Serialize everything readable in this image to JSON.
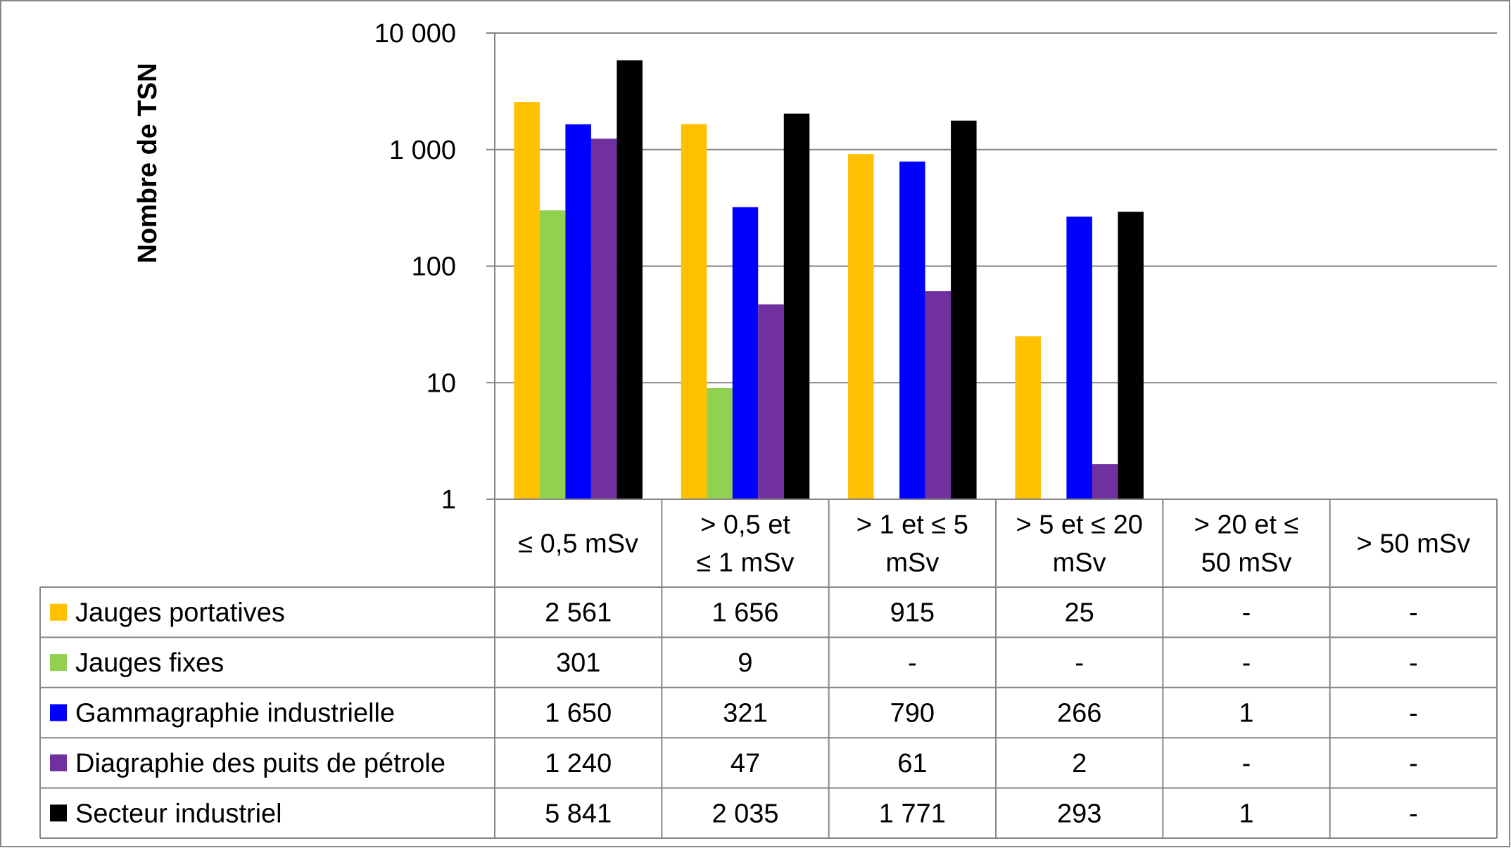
{
  "chart_data": {
    "type": "bar",
    "scale": "log",
    "ylabel": "Nombre de TSN",
    "ylim": [
      1,
      10000
    ],
    "y_ticks": [
      {
        "value": 1,
        "label": "1"
      },
      {
        "value": 10,
        "label": "10"
      },
      {
        "value": 100,
        "label": "100"
      },
      {
        "value": 1000,
        "label": "1 000"
      },
      {
        "value": 10000,
        "label": "10 000"
      }
    ],
    "grid": true,
    "legend": "data-table",
    "categories": [
      [
        "≤ 0,5 mSv"
      ],
      [
        "> 0,5 et",
        "≤ 1 mSv"
      ],
      [
        "> 1 et ≤ 5",
        "mSv"
      ],
      [
        "> 5 et ≤ 20",
        "mSv"
      ],
      [
        "> 20 et ≤",
        "50 mSv"
      ],
      [
        "> 50 mSv"
      ]
    ],
    "series": [
      {
        "name": "Jauges portatives",
        "color": "#FFC000",
        "values": [
          2561,
          1656,
          915,
          25,
          null,
          null
        ],
        "labels": [
          "2 561",
          "1 656",
          "915",
          "25",
          "-",
          "-"
        ]
      },
      {
        "name": "Jauges fixes",
        "color": "#92D050",
        "values": [
          301,
          9,
          null,
          null,
          null,
          null
        ],
        "labels": [
          "301",
          "9",
          "-",
          "-",
          "-",
          "-"
        ]
      },
      {
        "name": "Gammagraphie industrielle",
        "color": "#0000FF",
        "values": [
          1650,
          321,
          790,
          266,
          1,
          null
        ],
        "labels": [
          "1 650",
          "321",
          "790",
          "266",
          "1",
          "-"
        ]
      },
      {
        "name": "Diagraphie des puits de pétrole",
        "color": "#7030A0",
        "values": [
          1240,
          47,
          61,
          2,
          null,
          null
        ],
        "labels": [
          "1 240",
          "47",
          "61",
          "2",
          "-",
          "-"
        ]
      },
      {
        "name": "Secteur industriel",
        "color": "#000000",
        "values": [
          5841,
          2035,
          1771,
          293,
          1,
          null
        ],
        "labels": [
          "5 841",
          "2 035",
          "1 771",
          "293",
          "1",
          "-"
        ]
      }
    ]
  }
}
